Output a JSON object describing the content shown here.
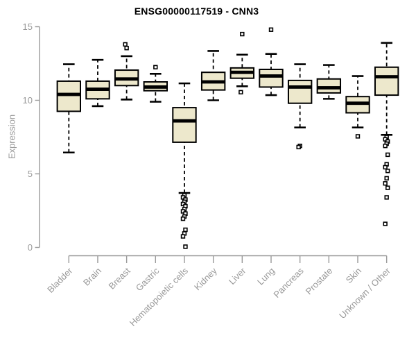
{
  "window": {
    "background": "#ffffff"
  },
  "colors": {
    "box_fill": "#EDE8CC",
    "box_stroke": "#000000",
    "median": "#000000",
    "whisker": "#000000",
    "outlier_stroke": "#000000",
    "outlier_fill": "#ffffff",
    "axis": "#999999",
    "tick_label": "#999999",
    "category_label": "#999999",
    "title": "#000000"
  },
  "chart_data": {
    "type": "boxplot",
    "title": "ENSG00000117519 - CNN3",
    "xlabel": "",
    "ylabel": "Expression",
    "ylim": [
      0,
      15
    ],
    "yticks": [
      0,
      5,
      10,
      15
    ],
    "grid": false,
    "legend": "none",
    "categories": [
      "Bladder",
      "Brain",
      "Breast",
      "Gastric",
      "Hematopoietic cells",
      "Kidney",
      "Liver",
      "Lung",
      "Pancreas",
      "Prostate",
      "Skin",
      "Unknown / Other"
    ],
    "series": [
      {
        "name": "Bladder",
        "low": 6.45,
        "q1": 9.25,
        "median": 10.4,
        "q3": 11.3,
        "high": 12.45,
        "outliers": []
      },
      {
        "name": "Brain",
        "low": 9.6,
        "q1": 10.1,
        "median": 10.75,
        "q3": 11.3,
        "high": 12.75,
        "outliers": []
      },
      {
        "name": "Breast",
        "low": 10.05,
        "q1": 11.0,
        "median": 11.45,
        "q3": 12.05,
        "high": 13.0,
        "outliers": [
          13.55,
          13.8
        ]
      },
      {
        "name": "Gastric",
        "low": 9.9,
        "q1": 10.65,
        "median": 10.9,
        "q3": 11.25,
        "high": 11.8,
        "outliers": [
          12.25
        ]
      },
      {
        "name": "Hematopoietic cells",
        "low": 3.7,
        "q1": 7.15,
        "median": 8.6,
        "q3": 9.5,
        "high": 11.15,
        "outliers": [
          3.55,
          3.4,
          3.25,
          3.1,
          2.95,
          2.8,
          2.6,
          2.45,
          2.3,
          2.1,
          1.95,
          1.2,
          0.95,
          0.75,
          0.05
        ]
      },
      {
        "name": "Kidney",
        "low": 10.0,
        "q1": 10.7,
        "median": 11.25,
        "q3": 11.9,
        "high": 13.35,
        "outliers": []
      },
      {
        "name": "Liver",
        "low": 10.95,
        "q1": 11.5,
        "median": 11.9,
        "q3": 12.2,
        "high": 13.1,
        "outliers": [
          14.5,
          10.55
        ]
      },
      {
        "name": "Lung",
        "low": 10.35,
        "q1": 10.9,
        "median": 11.65,
        "q3": 12.1,
        "high": 13.15,
        "outliers": [
          14.8
        ]
      },
      {
        "name": "Pancreas",
        "low": 8.15,
        "q1": 9.8,
        "median": 10.9,
        "q3": 11.35,
        "high": 12.45,
        "outliers": [
          6.9,
          6.82
        ]
      },
      {
        "name": "Prostate",
        "low": 10.1,
        "q1": 10.5,
        "median": 10.85,
        "q3": 11.45,
        "high": 12.4,
        "outliers": []
      },
      {
        "name": "Skin",
        "low": 8.15,
        "q1": 9.15,
        "median": 9.8,
        "q3": 10.25,
        "high": 11.65,
        "outliers": [
          7.55
        ]
      },
      {
        "name": "Unknown / Other",
        "low": 7.65,
        "q1": 10.35,
        "median": 11.6,
        "q3": 12.25,
        "high": 13.9,
        "outliers": [
          7.5,
          7.35,
          7.2,
          7.05,
          6.9,
          6.3,
          5.65,
          5.45,
          5.2,
          4.7,
          4.35,
          4.05,
          3.4,
          1.6
        ]
      }
    ]
  }
}
